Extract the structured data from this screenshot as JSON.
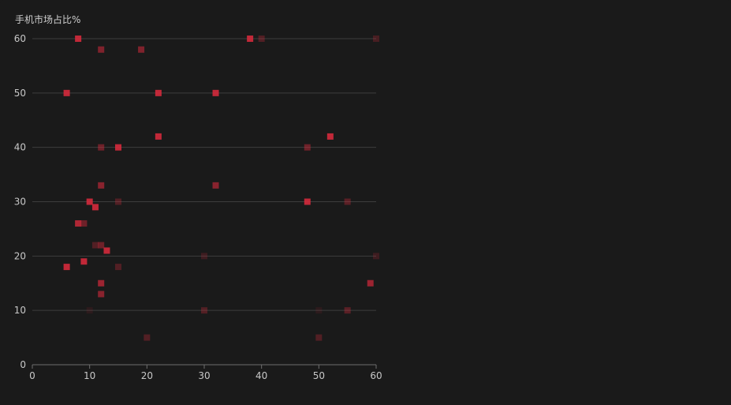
{
  "chart_data": {
    "type": "scatter",
    "ylabel": "手机市场占比%",
    "xlim": [
      0,
      60
    ],
    "ylim": [
      0,
      60
    ],
    "x_ticks": [
      "0",
      "10",
      "20",
      "30",
      "40",
      "50",
      "60"
    ],
    "y_ticks": [
      "0",
      "10",
      "20",
      "30",
      "40",
      "50",
      "60"
    ],
    "grid": "horizontal",
    "marker_color": "#d42a3c",
    "points": [
      {
        "x": 8,
        "y": 60,
        "opacity": 0.9
      },
      {
        "x": 38,
        "y": 60,
        "opacity": 0.9
      },
      {
        "x": 40,
        "y": 60,
        "opacity": 0.3
      },
      {
        "x": 60,
        "y": 60,
        "opacity": 0.25
      },
      {
        "x": 12,
        "y": 58,
        "opacity": 0.55
      },
      {
        "x": 19,
        "y": 58,
        "opacity": 0.55
      },
      {
        "x": 6,
        "y": 50,
        "opacity": 0.9
      },
      {
        "x": 22,
        "y": 50,
        "opacity": 0.9
      },
      {
        "x": 32,
        "y": 50,
        "opacity": 0.9
      },
      {
        "x": 22,
        "y": 42,
        "opacity": 0.9
      },
      {
        "x": 52,
        "y": 42,
        "opacity": 0.9
      },
      {
        "x": 12,
        "y": 40,
        "opacity": 0.45
      },
      {
        "x": 15,
        "y": 40,
        "opacity": 0.9
      },
      {
        "x": 48,
        "y": 40,
        "opacity": 0.45
      },
      {
        "x": 12,
        "y": 33,
        "opacity": 0.6
      },
      {
        "x": 32,
        "y": 33,
        "opacity": 0.6
      },
      {
        "x": 10,
        "y": 30,
        "opacity": 0.9
      },
      {
        "x": 15,
        "y": 30,
        "opacity": 0.3
      },
      {
        "x": 48,
        "y": 30,
        "opacity": 0.9
      },
      {
        "x": 55,
        "y": 30,
        "opacity": 0.35
      },
      {
        "x": 11,
        "y": 29,
        "opacity": 0.9
      },
      {
        "x": 8,
        "y": 26,
        "opacity": 0.8
      },
      {
        "x": 9,
        "y": 26,
        "opacity": 0.45
      },
      {
        "x": 11,
        "y": 22,
        "opacity": 0.3
      },
      {
        "x": 12,
        "y": 22,
        "opacity": 0.45
      },
      {
        "x": 13,
        "y": 21,
        "opacity": 0.9
      },
      {
        "x": 30,
        "y": 20,
        "opacity": 0.2
      },
      {
        "x": 60,
        "y": 20,
        "opacity": 0.2
      },
      {
        "x": 9,
        "y": 19,
        "opacity": 0.9
      },
      {
        "x": 6,
        "y": 18,
        "opacity": 0.9
      },
      {
        "x": 15,
        "y": 18,
        "opacity": 0.3
      },
      {
        "x": 12,
        "y": 15,
        "opacity": 0.7
      },
      {
        "x": 59,
        "y": 15,
        "opacity": 0.7
      },
      {
        "x": 12,
        "y": 13,
        "opacity": 0.6
      },
      {
        "x": 30,
        "y": 10,
        "opacity": 0.3
      },
      {
        "x": 55,
        "y": 10,
        "opacity": 0.35
      },
      {
        "x": 10,
        "y": 10,
        "opacity": 0.1
      },
      {
        "x": 50,
        "y": 10,
        "opacity": 0.1
      },
      {
        "x": 20,
        "y": 5,
        "opacity": 0.3
      },
      {
        "x": 50,
        "y": 5,
        "opacity": 0.3
      }
    ]
  }
}
